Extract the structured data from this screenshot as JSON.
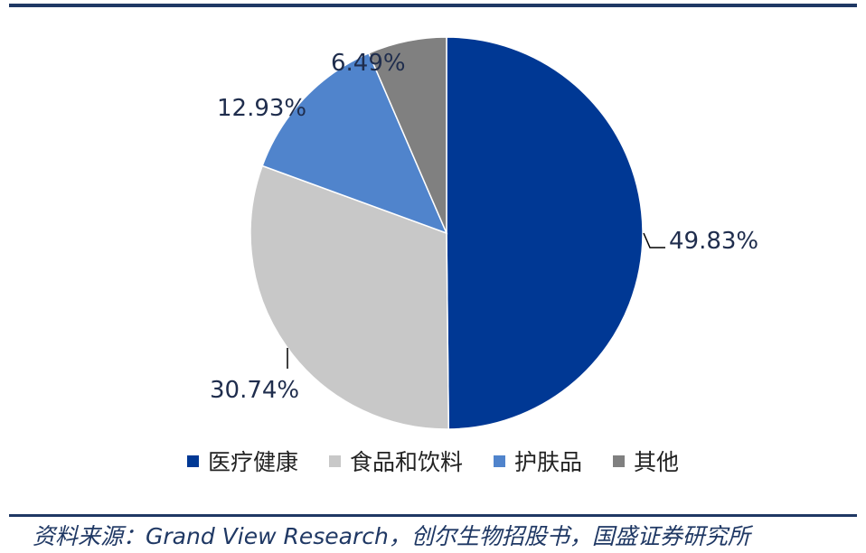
{
  "chart_data": {
    "type": "pie",
    "categories": [
      "医疗健康",
      "食品和饮料",
      "护肤品",
      "其他"
    ],
    "values": [
      49.83,
      30.74,
      12.93,
      6.49
    ],
    "value_labels": [
      "49.83%",
      "30.74%",
      "12.93%",
      "6.49%"
    ],
    "colors": [
      "#003894",
      "#c8c8c8",
      "#5084cc",
      "#808080"
    ],
    "legend_position": "bottom",
    "start_angle": "12 o'clock",
    "direction": "clockwise",
    "title": "",
    "xlabel": "",
    "ylabel": ""
  },
  "source": {
    "prefix": "资料来源：",
    "english": "Grand View Research",
    "suffix": "，创尔生物招股书，国盛证券研究所"
  }
}
